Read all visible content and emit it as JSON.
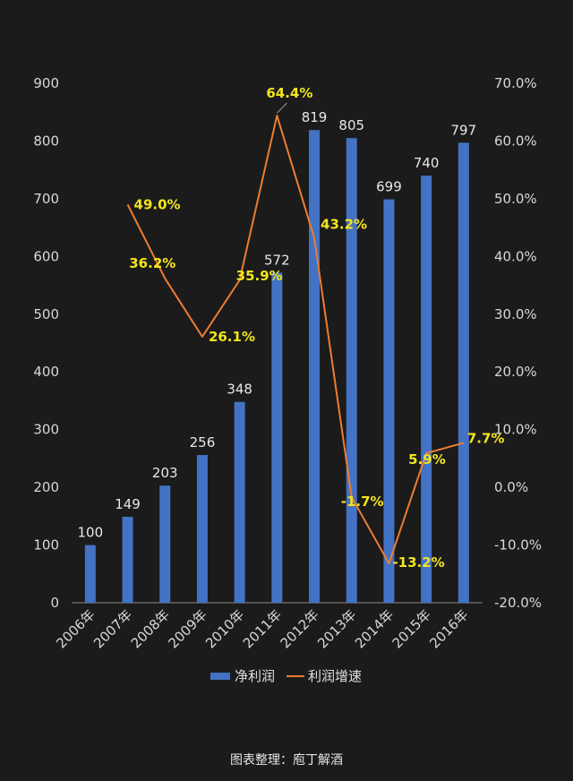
{
  "chart_data": {
    "type": "bar",
    "categories": [
      "2006年",
      "2007年",
      "2008年",
      "2009年",
      "2010年",
      "2011年",
      "2012年",
      "2013年",
      "2014年",
      "2015年",
      "2016年"
    ],
    "series": [
      {
        "name": "净利润",
        "type": "bar",
        "axis": "left",
        "values": [
          100,
          149,
          203,
          256,
          348,
          572,
          819,
          805,
          699,
          740,
          797
        ],
        "labels": [
          "100",
          "149",
          "203",
          "256",
          "348",
          "572",
          "819",
          "805",
          "699",
          "740",
          "797"
        ],
        "color": "#4472c4"
      },
      {
        "name": "利润增速",
        "type": "line",
        "axis": "right",
        "values": [
          null,
          49.0,
          36.2,
          26.1,
          35.9,
          64.4,
          43.2,
          -1.7,
          -13.2,
          5.9,
          7.7
        ],
        "labels": [
          "",
          "49.0%",
          "36.2%",
          "26.1%",
          "35.9%",
          "64.4%",
          "43.2%",
          "-1.7%",
          "-13.2%",
          "5.9%",
          "7.7%"
        ],
        "color": "#ed7d31"
      }
    ],
    "ylim_left": [
      0,
      900
    ],
    "left_ticks": [
      "0",
      "100",
      "200",
      "300",
      "400",
      "500",
      "600",
      "700",
      "800",
      "900"
    ],
    "ylim_right": [
      -20,
      70
    ],
    "right_ticks": [
      "-20.0%",
      "-10.0%",
      "0.0%",
      "10.0%",
      "20.0%",
      "30.0%",
      "40.0%",
      "50.0%",
      "60.0%",
      "70.0%"
    ],
    "grid": false,
    "legend": "bottom"
  },
  "source_text": "图表整理：庖丁解酒"
}
